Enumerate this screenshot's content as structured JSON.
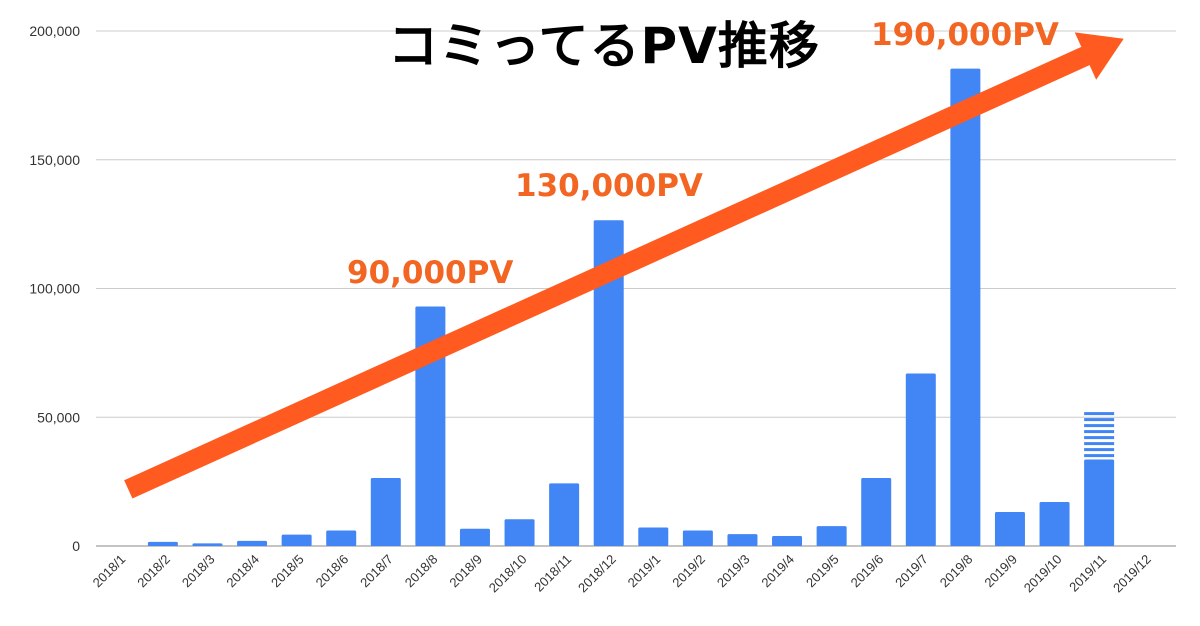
{
  "title": "コミってるPV推移",
  "annotations": [
    {
      "text": "90,000PV",
      "category": "2018/8"
    },
    {
      "text": "130,000PV",
      "category": "2018/12"
    },
    {
      "text": "190,000PV",
      "category": "2019/8"
    }
  ],
  "colors": {
    "bar": "#4285f4",
    "arrow": "#ff5a1f",
    "annotation": "#f26522",
    "grid": "#cccccc",
    "title": "#000000"
  },
  "chart_data": {
    "type": "bar",
    "categories": [
      "2018/1",
      "2018/2",
      "2018/3",
      "2018/4",
      "2018/5",
      "2018/6",
      "2018/7",
      "2018/8",
      "2018/9",
      "2018/10",
      "2018/11",
      "2018/12",
      "2019/1",
      "2019/2",
      "2019/3",
      "2019/4",
      "2019/5",
      "2019/6",
      "2019/7",
      "2019/8",
      "2019/9",
      "2019/10",
      "2019/11",
      "2019/12"
    ],
    "values": [
      0,
      1600,
      1000,
      2000,
      4400,
      6000,
      26400,
      93000,
      6700,
      10400,
      24300,
      126500,
      7200,
      6000,
      4600,
      3900,
      7700,
      26400,
      67000,
      185400,
      13200,
      17100,
      33600,
      0
    ],
    "projected": [
      {
        "category": "2019/11",
        "from": 33600,
        "to": 52000
      }
    ],
    "ylim": [
      0,
      200000
    ],
    "yticks": [
      0,
      50000,
      100000,
      150000,
      200000
    ],
    "ytick_labels": [
      "0",
      "50,000",
      "100,000",
      "150,000",
      "200,000"
    ],
    "grid": true,
    "legend": "none",
    "trend_arrow": {
      "from": {
        "category": "2018/1",
        "value": 22000
      },
      "to": {
        "category": "2019/12",
        "value": 197000
      }
    }
  }
}
